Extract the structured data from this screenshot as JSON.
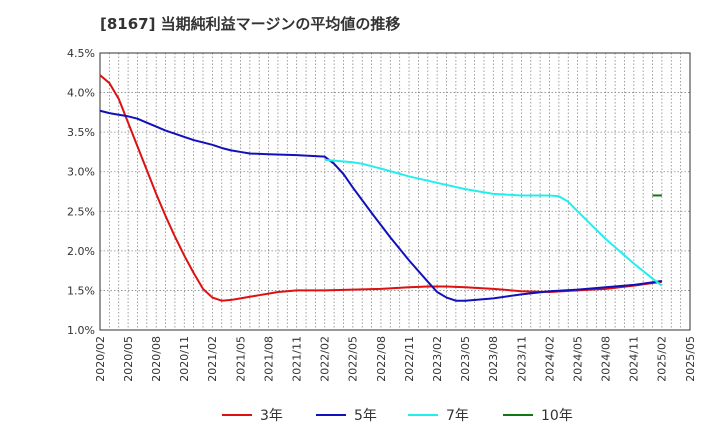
{
  "chart_data": {
    "type": "line",
    "title": "[8167]  当期純利益マージンの平均値の推移",
    "xlabel": "",
    "ylabel": "",
    "ylim": [
      1.0,
      4.5
    ],
    "xlim": [
      "2020/02",
      "2025/05"
    ],
    "x_ticks": [
      "2020/02",
      "2020/05",
      "2020/08",
      "2020/11",
      "2021/02",
      "2021/05",
      "2021/08",
      "2021/11",
      "2022/02",
      "2022/05",
      "2022/08",
      "2022/11",
      "2023/02",
      "2023/05",
      "2023/08",
      "2023/11",
      "2024/02",
      "2024/05",
      "2024/08",
      "2024/11",
      "2025/02",
      "2025/05"
    ],
    "y_ticks": [
      "1.0%",
      "1.5%",
      "2.0%",
      "2.5%",
      "3.0%",
      "3.5%",
      "4.0%",
      "4.5%"
    ],
    "grid": true,
    "legend_position": "bottom",
    "series": [
      {
        "name": "3年",
        "color": "#dd1111",
        "points": [
          [
            "2020/02",
            4.22
          ],
          [
            "2020/03",
            4.12
          ],
          [
            "2020/04",
            3.92
          ],
          [
            "2020/05",
            3.62
          ],
          [
            "2020/06",
            3.32
          ],
          [
            "2020/07",
            3.02
          ],
          [
            "2020/08",
            2.72
          ],
          [
            "2020/09",
            2.44
          ],
          [
            "2020/10",
            2.18
          ],
          [
            "2020/11",
            1.94
          ],
          [
            "2020/12",
            1.72
          ],
          [
            "2021/01",
            1.52
          ],
          [
            "2021/02",
            1.41
          ],
          [
            "2021/03",
            1.37
          ],
          [
            "2021/04",
            1.38
          ],
          [
            "2021/05",
            1.4
          ],
          [
            "2021/06",
            1.42
          ],
          [
            "2021/07",
            1.44
          ],
          [
            "2021/08",
            1.46
          ],
          [
            "2021/09",
            1.48
          ],
          [
            "2021/10",
            1.49
          ],
          [
            "2021/11",
            1.5
          ],
          [
            "2021/12",
            1.5
          ],
          [
            "2022/02",
            1.5
          ],
          [
            "2022/05",
            1.51
          ],
          [
            "2022/08",
            1.52
          ],
          [
            "2022/11",
            1.54
          ],
          [
            "2023/01",
            1.55
          ],
          [
            "2023/03",
            1.55
          ],
          [
            "2023/05",
            1.54
          ],
          [
            "2023/08",
            1.52
          ],
          [
            "2023/11",
            1.49
          ],
          [
            "2024/02",
            1.48
          ],
          [
            "2024/05",
            1.5
          ],
          [
            "2024/08",
            1.52
          ],
          [
            "2024/11",
            1.56
          ],
          [
            "2025/02",
            1.61
          ]
        ]
      },
      {
        "name": "5年",
        "color": "#1111bb",
        "points": [
          [
            "2020/02",
            3.77
          ],
          [
            "2020/03",
            3.74
          ],
          [
            "2020/04",
            3.72
          ],
          [
            "2020/05",
            3.7
          ],
          [
            "2020/06",
            3.67
          ],
          [
            "2020/07",
            3.62
          ],
          [
            "2020/08",
            3.57
          ],
          [
            "2020/09",
            3.52
          ],
          [
            "2020/10",
            3.48
          ],
          [
            "2020/11",
            3.44
          ],
          [
            "2020/12",
            3.4
          ],
          [
            "2021/01",
            3.37
          ],
          [
            "2021/02",
            3.34
          ],
          [
            "2021/03",
            3.3
          ],
          [
            "2021/04",
            3.27
          ],
          [
            "2021/05",
            3.25
          ],
          [
            "2021/06",
            3.23
          ],
          [
            "2021/08",
            3.22
          ],
          [
            "2021/11",
            3.21
          ],
          [
            "2022/02",
            3.19
          ],
          [
            "2022/03",
            3.1
          ],
          [
            "2022/04",
            2.97
          ],
          [
            "2022/05",
            2.8
          ],
          [
            "2022/07",
            2.48
          ],
          [
            "2022/09",
            2.17
          ],
          [
            "2022/11",
            1.88
          ],
          [
            "2023/01",
            1.61
          ],
          [
            "2023/02",
            1.48
          ],
          [
            "2023/03",
            1.41
          ],
          [
            "2023/04",
            1.37
          ],
          [
            "2023/05",
            1.37
          ],
          [
            "2023/08",
            1.4
          ],
          [
            "2023/11",
            1.45
          ],
          [
            "2024/02",
            1.49
          ],
          [
            "2024/05",
            1.51
          ],
          [
            "2024/08",
            1.54
          ],
          [
            "2024/11",
            1.57
          ],
          [
            "2025/02",
            1.62
          ]
        ]
      },
      {
        "name": "7年",
        "color": "#22eeee",
        "points": [
          [
            "2022/02",
            3.15
          ],
          [
            "2022/05",
            3.12
          ],
          [
            "2022/06",
            3.1
          ],
          [
            "2022/08",
            3.04
          ],
          [
            "2022/11",
            2.94
          ],
          [
            "2023/02",
            2.86
          ],
          [
            "2023/05",
            2.78
          ],
          [
            "2023/08",
            2.72
          ],
          [
            "2023/11",
            2.7
          ],
          [
            "2024/02",
            2.7
          ],
          [
            "2024/03",
            2.69
          ],
          [
            "2024/04",
            2.62
          ],
          [
            "2024/05",
            2.5
          ],
          [
            "2024/08",
            2.15
          ],
          [
            "2024/11",
            1.84
          ],
          [
            "2025/01",
            1.65
          ],
          [
            "2025/02",
            1.56
          ]
        ]
      },
      {
        "name": "10年",
        "color": "#117711",
        "points": [
          [
            "2025/01",
            2.7
          ],
          [
            "2025/02",
            2.7
          ]
        ]
      }
    ]
  }
}
